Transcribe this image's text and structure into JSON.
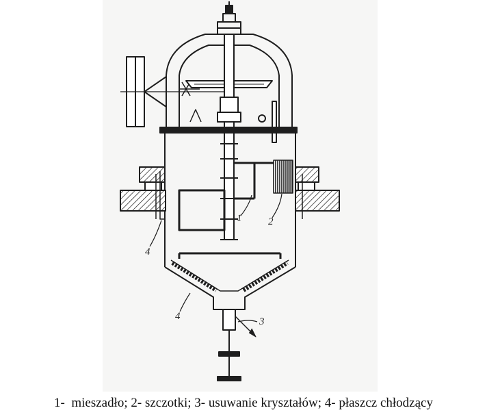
{
  "figure": {
    "labels": {
      "agitator": "1",
      "brushes": "2",
      "crystal_removal": "3",
      "jacket_upper": "4",
      "jacket_lower": "4"
    }
  },
  "caption": "1-  mieszadło; 2- szczotki; 3- usuwanie kryształów; 4- płaszcz chłodzący",
  "colors": {
    "page_bg": "#ffffff",
    "paper": "#f6f6f5",
    "ink": "#1e1e1e"
  }
}
